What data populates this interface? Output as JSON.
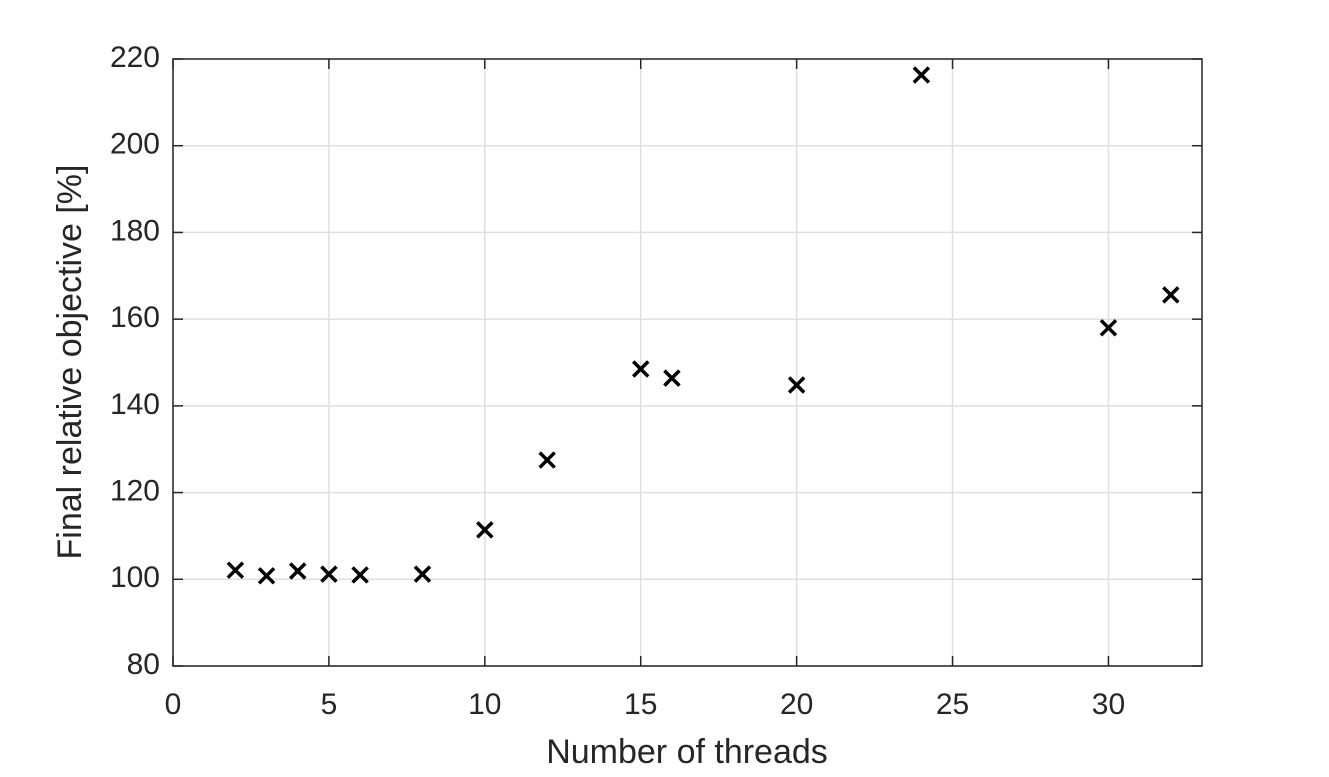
{
  "chart_data": {
    "type": "scatter",
    "x_label": "Number of threads",
    "y_label": "Final relative objective [%]",
    "x": [
      2,
      3,
      4,
      5,
      6,
      8,
      10,
      12,
      15,
      16,
      20,
      24,
      30,
      32
    ],
    "values": [
      102.1,
      100.8,
      101.9,
      101.2,
      101.0,
      101.2,
      111.4,
      127.5,
      148.5,
      146.4,
      144.8,
      216.3,
      158.0,
      165.6
    ],
    "color": "#000000",
    "marker": "x",
    "xlim": [
      0,
      33
    ],
    "xticks": [
      0,
      5,
      10,
      15,
      20,
      25,
      30
    ],
    "ylim": [
      80,
      220
    ],
    "yticks": [
      80,
      100,
      120,
      140,
      160,
      180,
      200,
      220
    ],
    "grid": true
  }
}
